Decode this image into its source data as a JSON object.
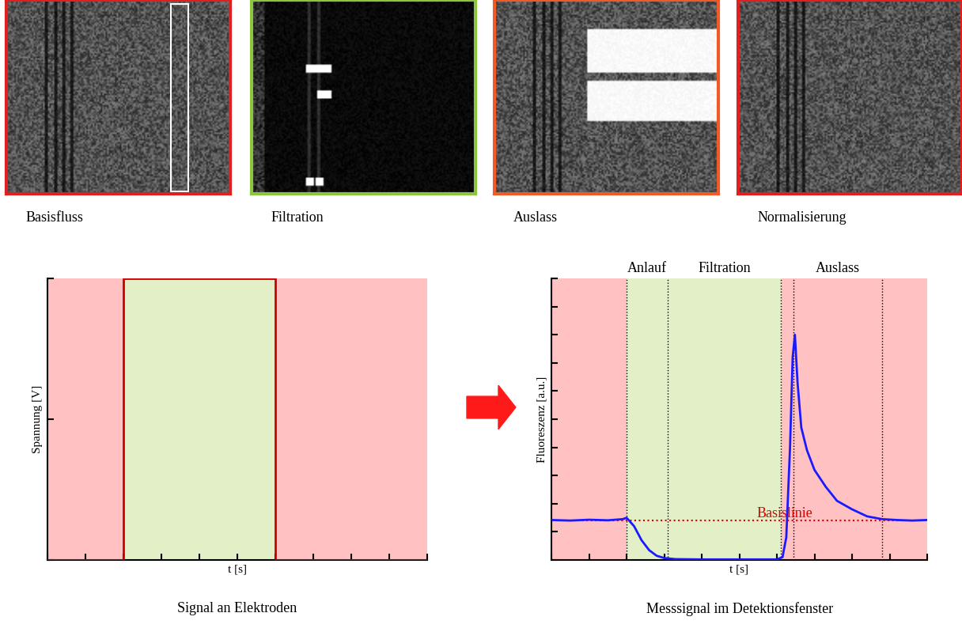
{
  "panels": [
    {
      "label": "Basisfluss",
      "color": "#e02020"
    },
    {
      "label": "Filtration",
      "color": "#8cc63f"
    },
    {
      "label": "Auslass",
      "color": "#f05a28"
    },
    {
      "label": "Normalisierung",
      "color": "#e02020"
    }
  ],
  "chart_data": [
    {
      "type": "line",
      "caption": "Signal an Elektroden",
      "x_label": "t [s]",
      "y_label": "Spannung [V]",
      "x": [
        0,
        2,
        2,
        6,
        6,
        10
      ],
      "values": [
        0,
        0,
        2,
        2,
        0,
        0
      ],
      "color": "#cc0000",
      "xlim": [
        0,
        10
      ],
      "ylim": [
        0,
        2
      ],
      "xticks": [
        0,
        1,
        2,
        3,
        4,
        5,
        6,
        7,
        8,
        9,
        10
      ],
      "yticks": [
        0,
        1,
        2
      ],
      "tick_labels": false,
      "active": {
        "start": 2,
        "end": 6
      }
    },
    {
      "type": "line",
      "caption": "Messsignal im Detektionsfenster",
      "x_label": "t [s]",
      "y_label": "Fluoreszenz [a.u.]",
      "x": [
        0,
        0.5,
        1,
        1.5,
        1.9,
        2.0,
        2.2,
        2.4,
        2.6,
        2.8,
        3.0,
        3.3,
        4,
        5,
        6,
        6.15,
        6.25,
        6.35,
        6.42,
        6.48,
        6.55,
        6.65,
        6.8,
        7.0,
        7.3,
        7.6,
        8.0,
        8.4,
        8.8,
        9.2,
        9.6,
        10
      ],
      "values": [
        1.42,
        1.4,
        1.43,
        1.41,
        1.45,
        1.5,
        1.2,
        0.7,
        0.35,
        0.15,
        0.07,
        0.03,
        0.02,
        0.02,
        0.02,
        0.1,
        0.8,
        4.0,
        7.2,
        8.0,
        6.3,
        4.7,
        3.9,
        3.2,
        2.6,
        2.1,
        1.8,
        1.55,
        1.45,
        1.42,
        1.4,
        1.42
      ],
      "color": "#1a1aff",
      "xlim": [
        0,
        10
      ],
      "ylim": [
        0,
        10
      ],
      "xticks": [
        0,
        1,
        2,
        3,
        4,
        5,
        6,
        7,
        8,
        9,
        10
      ],
      "yticks": [
        0,
        1,
        2,
        3,
        4,
        5,
        6,
        7,
        8,
        9,
        10
      ],
      "tick_labels": false,
      "active": {
        "start": 2,
        "end": 6.1
      },
      "baseline": {
        "label": "Basislinie",
        "value": 1.4,
        "color": "#e00000"
      },
      "phases": [
        {
          "label": "Anlauf",
          "start": 2,
          "end": 3.1
        },
        {
          "label": "Filtration",
          "start": 3.1,
          "end": 6.1
        },
        {
          "label": "Auslass",
          "start": 6.45,
          "end": 8.8
        }
      ]
    }
  ]
}
